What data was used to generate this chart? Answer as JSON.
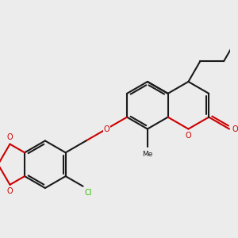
{
  "bg_color": "#ececec",
  "bond_color": "#1a1a1a",
  "o_color": "#cc0000",
  "cl_color": "#33bb00",
  "lw": 1.5,
  "figsize": [
    3.0,
    3.0
  ],
  "dpi": 100,
  "xlim": [
    -0.5,
    3.2
  ],
  "ylim": [
    -0.2,
    3.2
  ]
}
